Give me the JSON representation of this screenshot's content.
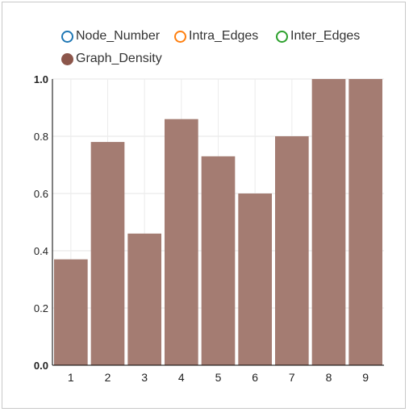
{
  "legend": {
    "items": [
      {
        "label": "Node_Number",
        "color": "#1f77b4",
        "filled": false
      },
      {
        "label": "Intra_Edges",
        "color": "#ff7f0e",
        "filled": false
      },
      {
        "label": "Inter_Edges",
        "color": "#2ca02c",
        "filled": false
      },
      {
        "label": "Graph_Density",
        "color": "#8c564b",
        "filled": true
      }
    ]
  },
  "chart_data": {
    "type": "bar",
    "categories": [
      "1",
      "2",
      "3",
      "4",
      "5",
      "6",
      "7",
      "8",
      "9"
    ],
    "series": [
      {
        "name": "Graph_Density",
        "color": "#a47c72",
        "values": [
          0.37,
          0.78,
          0.46,
          0.86,
          0.73,
          0.6,
          0.8,
          1.0,
          1.0
        ]
      }
    ],
    "yticks": [
      "0.0",
      "0.2",
      "0.4",
      "0.6",
      "0.8",
      "1.0"
    ],
    "ylim": [
      0,
      1.0
    ],
    "grid": true,
    "legend_position": "top"
  }
}
